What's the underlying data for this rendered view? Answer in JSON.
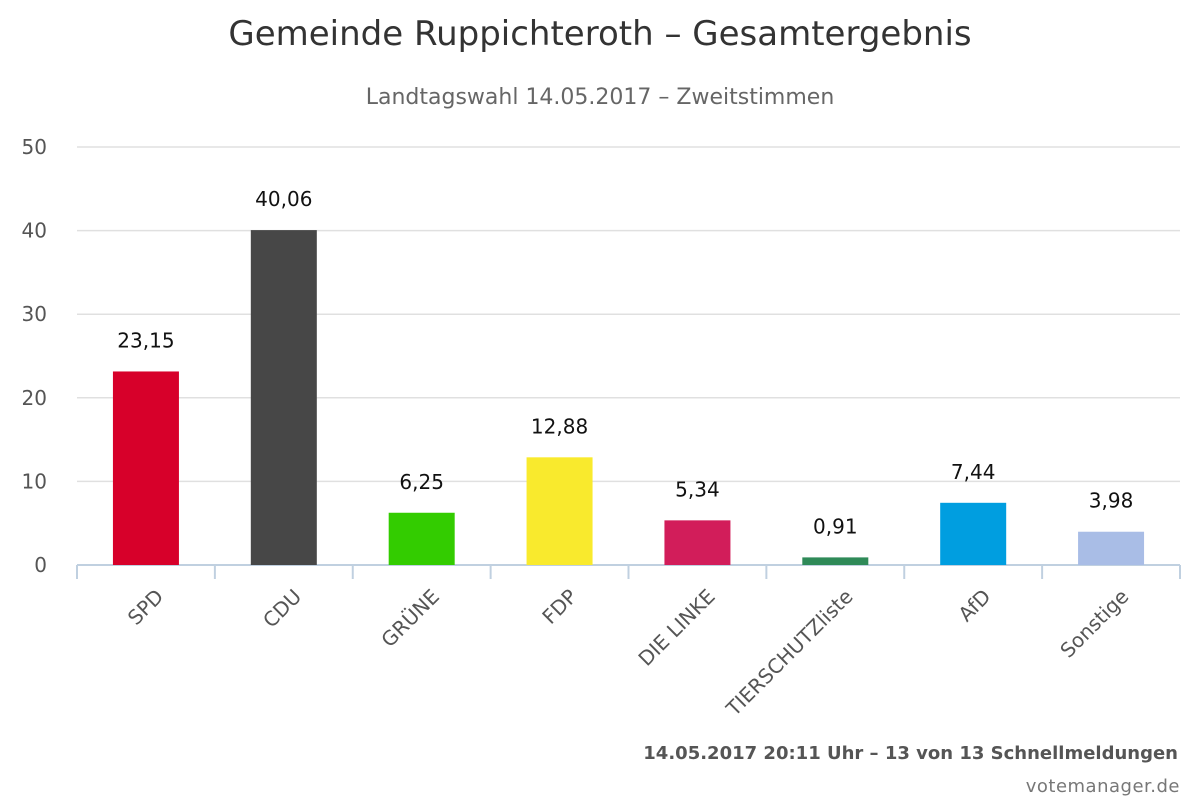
{
  "title": "Gemeinde Ruppichteroth – Gesamtergebnis",
  "subtitle": "Landtagswahl 14.05.2017 – Zweitstimmen",
  "footer": "14.05.2017 20:11 Uhr – 13 von 13 Schnellmeldungen",
  "credit": "votemanager.de",
  "chart_data": {
    "type": "bar",
    "title": "Gemeinde Ruppichteroth – Gesamtergebnis",
    "subtitle": "Landtagswahl 14.05.2017 – Zweitstimmen",
    "xlabel": "",
    "ylabel": "",
    "ylim": [
      0,
      50
    ],
    "yticks": [
      0,
      10,
      20,
      30,
      40,
      50
    ],
    "grid": true,
    "legend": "none",
    "categories": [
      "SPD",
      "CDU",
      "GRÜNE",
      "FDP",
      "DIE LINKE",
      "TIERSCHUTZliste",
      "AfD",
      "Sonstige"
    ],
    "values": [
      23.15,
      40.06,
      6.25,
      12.88,
      5.34,
      0.91,
      7.44,
      3.98
    ],
    "value_labels": [
      "23,15",
      "40,06",
      "6,25",
      "12,88",
      "5,34",
      "0,91",
      "7,44",
      "3,98"
    ],
    "colors": [
      "#d7002a",
      "#474747",
      "#33cc00",
      "#f9ea2d",
      "#d21d5a",
      "#2f8a58",
      "#009ee0",
      "#a9bde6"
    ]
  }
}
